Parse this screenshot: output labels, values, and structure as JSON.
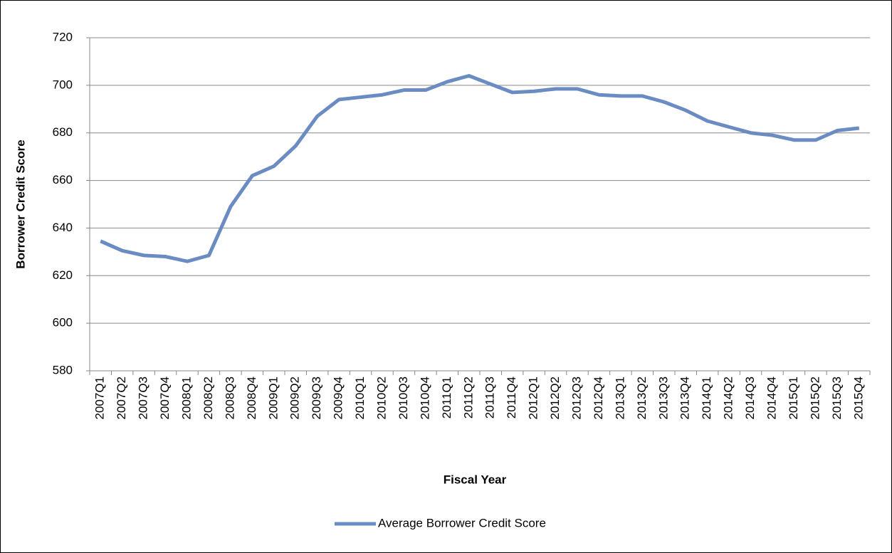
{
  "chart_data": {
    "type": "line",
    "x_label": "Fiscal Year",
    "y_label": "Borrower Credit Score",
    "categories": [
      "2007Q1",
      "2007Q2",
      "2007Q3",
      "2007Q4",
      "2008Q1",
      "2008Q2",
      "2008Q3",
      "2008Q4",
      "2009Q1",
      "2009Q2",
      "2009Q3",
      "2009Q4",
      "2010Q1",
      "2010Q2",
      "2010Q3",
      "2010Q4",
      "2011Q1",
      "2011Q2",
      "2011Q3",
      "2011Q4",
      "2012Q1",
      "2012Q2",
      "2012Q3",
      "2012Q4",
      "2013Q1",
      "2013Q2",
      "2013Q3",
      "2013Q4",
      "2014Q1",
      "2014Q2",
      "2014Q3",
      "2014Q4",
      "2015Q1",
      "2015Q2",
      "2015Q3",
      "2015Q4"
    ],
    "series": [
      {
        "name": "Average Borrower Credit Score",
        "color": "#6a8cc2",
        "values": [
          634.5,
          630.5,
          628.5,
          628,
          626,
          628.5,
          649,
          662,
          666,
          674.5,
          687,
          694,
          695,
          696,
          698,
          698,
          701.5,
          704,
          700.5,
          697,
          697.5,
          698.5,
          698.5,
          696,
          695.5,
          695.5,
          693,
          689.5,
          685,
          682.5,
          680,
          679,
          677,
          677,
          681,
          682
        ]
      }
    ],
    "ylim": [
      580,
      720
    ],
    "yticks": [
      580,
      600,
      620,
      640,
      660,
      680,
      700,
      720
    ],
    "grid": true,
    "legend": "bottom"
  }
}
